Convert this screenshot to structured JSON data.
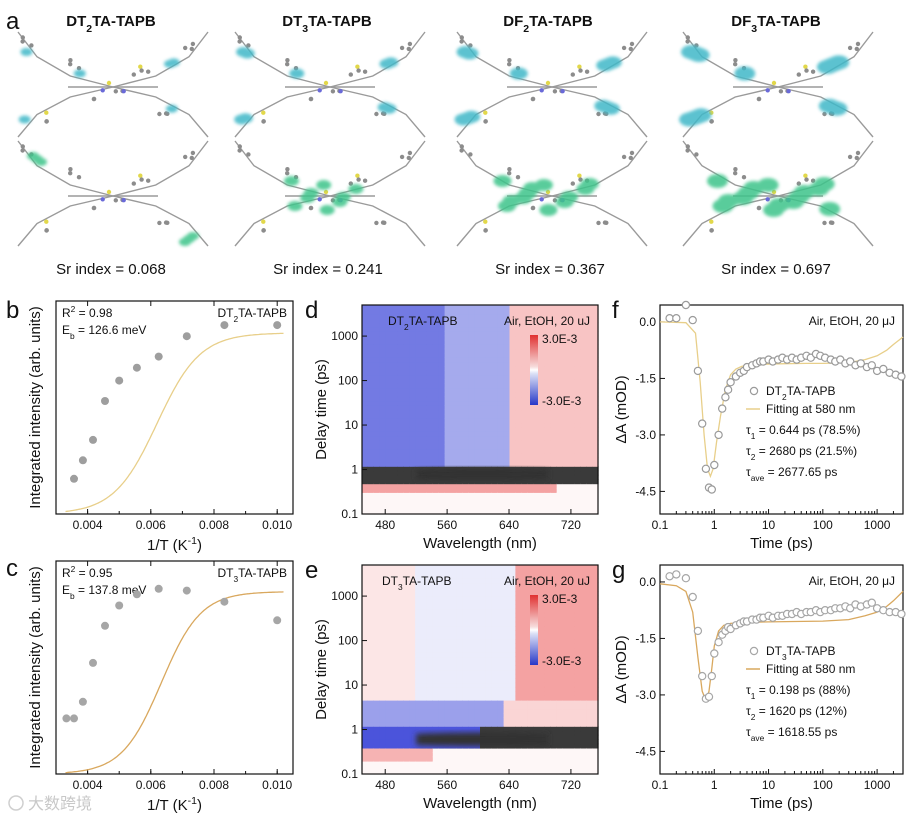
{
  "panel_labels": [
    "a",
    "b",
    "c",
    "d",
    "e",
    "f",
    "g"
  ],
  "panel_a": {
    "molecules": [
      {
        "name_parts": [
          "DT",
          "2",
          "TA-TAPB"
        ],
        "sr_label": "Sr index = 0.068",
        "hole_color": "#3fb8c8",
        "elec_color": "#3ec48a"
      },
      {
        "name_parts": [
          "DT",
          "3",
          "TA-TAPB"
        ],
        "sr_label": "Sr index = 0.241",
        "hole_color": "#3fb8c8",
        "elec_color": "#3ec48a"
      },
      {
        "name_parts": [
          "DF",
          "2",
          "TA-TAPB"
        ],
        "sr_label": "Sr index = 0.367",
        "hole_color": "#3fb8c8",
        "elec_color": "#3ec48a"
      },
      {
        "name_parts": [
          "DF",
          "3",
          "TA-TAPB"
        ],
        "sr_label": "Sr index = 0.697",
        "hole_color": "#3fb8c8",
        "elec_color": "#3ec48a"
      }
    ]
  },
  "watermark": "大数跨境",
  "chart_data": [
    {
      "id": "b",
      "type": "scatter",
      "xlabel": "1/T (K",
      "xlabel_sup": "-1",
      "xlabel_end": ")",
      "ylabel": "Integrated intensity (arb. units)",
      "xlim": [
        0.003,
        0.0105
      ],
      "ylim": [
        0,
        1.15
      ],
      "xticks": [
        0.004,
        0.006,
        0.008,
        0.01
      ],
      "xtick_labels": [
        "0.004",
        "0.006",
        "0.008",
        "0.010"
      ],
      "annotations": {
        "r2_pre": "R",
        "r2_sup": "2",
        "r2_post": " = 0.98",
        "eb_pre": "E",
        "eb_sub": "b",
        "eb_post": " = 126.6 meV",
        "legend_pre": "DT",
        "legend_sub": "2",
        "legend_post": "TA-TAPB"
      },
      "points": {
        "x": [
          0.00357,
          0.00385,
          0.00417,
          0.00455,
          0.005,
          0.00556,
          0.00625,
          0.00714,
          0.00833,
          0.01
        ],
        "y": [
          0.19,
          0.29,
          0.4,
          0.61,
          0.72,
          0.79,
          0.85,
          0.96,
          1.02,
          1.02
        ]
      },
      "fit": {
        "Ea": 0.1266,
        "A": 9000,
        "amp": 0.978
      },
      "point_color": "#9e9e9e",
      "fit_color": "#e8cf8a"
    },
    {
      "id": "c",
      "type": "scatter",
      "xlabel": "1/T (K",
      "xlabel_sup": "-1",
      "xlabel_end": ")",
      "ylabel": "Integrated intensity (arb. units)",
      "xlim": [
        0.003,
        0.0105
      ],
      "ylim": [
        0,
        1.15
      ],
      "xticks": [
        0.004,
        0.006,
        0.008,
        0.01
      ],
      "xtick_labels": [
        "0.004",
        "0.006",
        "0.008",
        "0.010"
      ],
      "annotations": {
        "r2_pre": "R",
        "r2_sup": "2",
        "r2_post": " = 0.95",
        "eb_pre": "E",
        "eb_sub": "b",
        "eb_post": " = 137.8 meV",
        "legend_pre": "DT",
        "legend_sub": "3",
        "legend_post": "TA-TAPB"
      },
      "points": {
        "x": [
          0.00333,
          0.00357,
          0.00385,
          0.00417,
          0.00455,
          0.005,
          0.00556,
          0.00625,
          0.00714,
          0.00833,
          0.01
        ],
        "y": [
          0.3,
          0.3,
          0.39,
          0.6,
          0.8,
          0.91,
          0.97,
          1.0,
          0.99,
          0.93,
          0.83
        ]
      },
      "fit": {
        "Ea": 0.1378,
        "A": 25000,
        "amp": 0.985
      },
      "point_color": "#a6a6a6",
      "fit_color": "#d9a85e"
    },
    {
      "id": "d",
      "type": "heatmap",
      "title_pre": "DT",
      "title_sub": "2",
      "title_post": "TA-TAPB",
      "condition": "Air, EtOH, 20 uJ",
      "xlabel": "Wavelength (nm)",
      "ylabel": "Delay time (ps)",
      "xlim": [
        450,
        755
      ],
      "ylim_log": [
        0.1,
        5000
      ],
      "xticks": [
        480,
        560,
        640,
        720
      ],
      "yticks": [
        0.1,
        1,
        10,
        100,
        1000
      ],
      "ytick_labels": [
        "0.1",
        "1",
        "10",
        "100",
        "1000"
      ],
      "colorbar_labels": [
        "3.0E-3",
        "-3.0E-3"
      ]
    },
    {
      "id": "e",
      "type": "heatmap",
      "title_pre": "DT",
      "title_sub": "3",
      "title_post": "TA-TAPB",
      "condition": "Air, EtOH, 20 uJ",
      "xlabel": "Wavelength (nm)",
      "ylabel": "Delay time (ps)",
      "xlim": [
        450,
        755
      ],
      "ylim_log": [
        0.1,
        5000
      ],
      "xticks": [
        480,
        560,
        640,
        720
      ],
      "yticks": [
        0.1,
        1,
        10,
        100,
        1000
      ],
      "ytick_labels": [
        "0.1",
        "1",
        "10",
        "100",
        "1000"
      ],
      "colorbar_labels": [
        "3.0E-3",
        "-3.0E-3"
      ]
    },
    {
      "id": "f",
      "type": "scatter",
      "condition": "Air, EtOH, 20 μJ",
      "xlabel": "Time (ps)",
      "ylabel": "ΔA (mOD)",
      "xlim_log": [
        0.1,
        3000
      ],
      "ylim": [
        -5.1,
        0.45
      ],
      "xticks": [
        0.1,
        1,
        10,
        100,
        1000
      ],
      "xtick_labels": [
        "0.1",
        "1",
        "10",
        "100",
        "1000"
      ],
      "yticks": [
        0.0,
        -1.5,
        -3.0,
        -4.5
      ],
      "ytick_labels": [
        "0.0",
        "-1.5",
        "-3.0",
        "-4.5"
      ],
      "legend": {
        "series_pre": "DT",
        "series_sub": "2",
        "series_post": "TA-TAPB",
        "fit": "Fitting at 580 nm"
      },
      "taus": [
        {
          "sym": "τ",
          "sub": "1",
          "text": " = 0.644 ps (78.5%)"
        },
        {
          "sym": "τ",
          "sub": "2",
          "text": " = 2680 ps (21.5%)"
        },
        {
          "sym": "τ",
          "sub": "ave",
          "text": " = 2677.65 ps"
        }
      ],
      "points": {
        "x": [
          0.15,
          0.2,
          0.3,
          0.4,
          0.5,
          0.6,
          0.7,
          0.8,
          0.9,
          1.0,
          1.2,
          1.4,
          1.6,
          1.8,
          2.0,
          2.5,
          3,
          3.5,
          4,
          5,
          6,
          7,
          8,
          10,
          12,
          15,
          18,
          22,
          27,
          33,
          40,
          50,
          60,
          75,
          90,
          110,
          140,
          170,
          210,
          260,
          320,
          400,
          500,
          650,
          800,
          1000,
          1300,
          1700,
          2200,
          2800
        ],
        "y": [
          0.1,
          0.1,
          0.45,
          0.05,
          -1.3,
          -2.7,
          -3.9,
          -4.4,
          -4.45,
          -3.8,
          -3.0,
          -2.3,
          -2.0,
          -1.8,
          -1.6,
          -1.45,
          -1.35,
          -1.3,
          -1.2,
          -1.15,
          -1.1,
          -1.05,
          -1.05,
          -1.0,
          -1.05,
          -1.0,
          -0.95,
          -1.0,
          -0.95,
          -1.0,
          -0.95,
          -0.9,
          -0.95,
          -0.85,
          -0.9,
          -0.95,
          -1.0,
          -1.05,
          -1.0,
          -1.1,
          -1.05,
          -1.15,
          -1.1,
          -1.2,
          -1.15,
          -1.3,
          -1.25,
          -1.35,
          -1.4,
          -1.45
        ]
      },
      "fit": {
        "x": [
          0.1,
          0.3,
          0.45,
          0.55,
          0.65,
          0.75,
          0.85,
          0.95,
          1.1,
          1.3,
          1.6,
          2,
          2.5,
          3.2,
          4,
          6,
          10,
          20,
          50,
          100,
          300,
          600,
          1000,
          1500,
          2000,
          3000
        ],
        "y": [
          0.0,
          -0.02,
          -0.3,
          -1.6,
          -3.0,
          -3.9,
          -4.1,
          -3.9,
          -3.2,
          -2.5,
          -1.8,
          -1.4,
          -1.25,
          -1.18,
          -1.15,
          -1.13,
          -1.12,
          -1.11,
          -1.1,
          -1.1,
          -1.08,
          -1.0,
          -0.9,
          -0.75,
          -0.6,
          -0.4
        ]
      },
      "point_color": "#9a9a9a",
      "fit_color": "#e8cf8a"
    },
    {
      "id": "g",
      "type": "scatter",
      "condition": "Air, EtOH, 20 μJ",
      "xlabel": "Time (ps)",
      "ylabel": "ΔA (mOD)",
      "xlim_log": [
        0.1,
        3000
      ],
      "ylim": [
        -5.1,
        0.45
      ],
      "xticks": [
        0.1,
        1,
        10,
        100,
        1000
      ],
      "xtick_labels": [
        "0.1",
        "1",
        "10",
        "100",
        "1000"
      ],
      "yticks": [
        0.0,
        -1.5,
        -3.0,
        -4.5
      ],
      "ytick_labels": [
        "0.0",
        "-1.5",
        "-3.0",
        "-4.5"
      ],
      "legend": {
        "series_pre": "DT",
        "series_sub": "3",
        "series_post": "TA-TAPB",
        "fit": "Fitting at 580 nm"
      },
      "taus": [
        {
          "sym": "τ",
          "sub": "1",
          "text": " = 0.198 ps (88%)"
        },
        {
          "sym": "τ",
          "sub": "2",
          "text": " = 1620 ps (12%)"
        },
        {
          "sym": "τ",
          "sub": "ave",
          "text": " = 1618.55 ps"
        }
      ],
      "points": {
        "x": [
          0.15,
          0.2,
          0.3,
          0.4,
          0.5,
          0.6,
          0.7,
          0.8,
          0.9,
          1.0,
          1.2,
          1.4,
          1.6,
          1.8,
          2.0,
          2.5,
          3,
          3.5,
          4,
          5,
          6,
          7,
          8,
          10,
          12,
          15,
          18,
          22,
          27,
          33,
          40,
          50,
          60,
          75,
          90,
          110,
          140,
          170,
          210,
          260,
          320,
          400,
          500,
          650,
          800,
          1000,
          1300,
          1700,
          2200,
          2800
        ],
        "y": [
          0.15,
          0.2,
          0.1,
          -0.4,
          -1.3,
          -2.5,
          -3.1,
          -3.05,
          -2.5,
          -1.9,
          -1.6,
          -1.4,
          -1.3,
          -1.2,
          -1.25,
          -1.15,
          -1.1,
          -1.05,
          -1.05,
          -1.0,
          -1.0,
          -0.95,
          -0.95,
          -0.9,
          -0.95,
          -0.9,
          -0.9,
          -0.85,
          -0.85,
          -0.8,
          -0.85,
          -0.8,
          -0.8,
          -0.75,
          -0.8,
          -0.75,
          -0.75,
          -0.7,
          -0.7,
          -0.65,
          -0.7,
          -0.6,
          -0.65,
          -0.6,
          -0.55,
          -0.7,
          -0.75,
          -0.8,
          -0.8,
          -0.85
        ]
      },
      "fit": {
        "x": [
          0.1,
          0.2,
          0.3,
          0.4,
          0.5,
          0.6,
          0.7,
          0.8,
          0.9,
          1.0,
          1.2,
          1.5,
          2,
          3,
          5,
          10,
          30,
          100,
          300,
          600,
          1000,
          1500,
          2000,
          3000
        ],
        "y": [
          -0.05,
          -0.1,
          -0.25,
          -0.8,
          -2.0,
          -2.9,
          -3.15,
          -2.9,
          -2.3,
          -1.7,
          -1.3,
          -1.15,
          -1.1,
          -1.08,
          -1.07,
          -1.06,
          -1.05,
          -1.04,
          -1.0,
          -0.9,
          -0.8,
          -0.65,
          -0.5,
          -0.25
        ]
      },
      "point_color": "#a6a6a6",
      "fit_color": "#d9a85e"
    }
  ]
}
